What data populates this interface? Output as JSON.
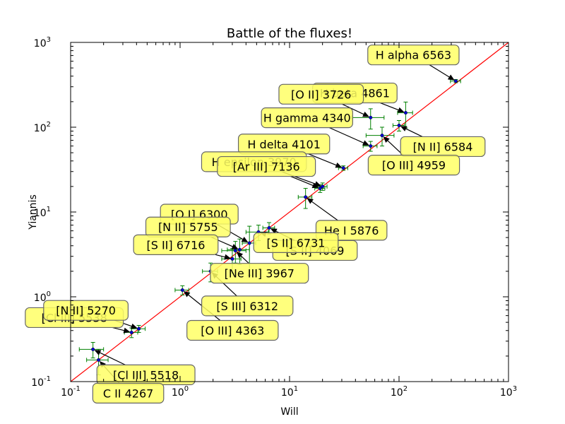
{
  "chart_data": {
    "type": "scatter",
    "title": "Battle of the fluxes!",
    "xlabel": "Will",
    "ylabel": "Yiannis",
    "xscale": "log",
    "yscale": "log",
    "xlim": [
      0.1,
      1000
    ],
    "ylim": [
      0.1,
      1000
    ],
    "x_ticks": [
      "10^-1",
      "10^0",
      "10^1",
      "10^2",
      "10^3"
    ],
    "y_ticks": [
      "10^-1",
      "10^0",
      "10^1",
      "10^2",
      "10^3"
    ],
    "grid": false,
    "reference_line": {
      "label": "",
      "from": [
        0.1,
        0.1
      ],
      "to": [
        1000,
        1000
      ],
      "color": "#ff0000"
    },
    "marker_color": "#0000cc",
    "errorbar_color": "#008000",
    "annotation_box_color": "#ffff66",
    "points": [
      {
        "label": "H alpha 6563",
        "x": 330,
        "y": 350,
        "xerr": 35,
        "yerr": 15
      },
      {
        "label": "H beta 4861",
        "x": 115,
        "y": 148,
        "xerr": 18,
        "yerr": 50
      },
      {
        "label": "[O II] 3726",
        "x": 55,
        "y": 130,
        "xerr": 18,
        "yerr": 35
      },
      {
        "label": "[N II] 6584",
        "x": 100,
        "y": 105,
        "xerr": 12,
        "yerr": 15
      },
      {
        "label": "[O III] 4959",
        "x": 70,
        "y": 80,
        "xerr": 20,
        "yerr": 20
      },
      {
        "label": "H gamma 4340",
        "x": 55,
        "y": 60,
        "xerr": 8,
        "yerr": 8
      },
      {
        "label": "H delta 4101",
        "x": 31,
        "y": 33,
        "xerr": 3,
        "yerr": 2
      },
      {
        "label": "H epsilon 3970",
        "x": 20,
        "y": 20,
        "xerr": 2,
        "yerr": 2
      },
      {
        "label": "[Ar III] 7136",
        "x": 19,
        "y": 19,
        "xerr": 2,
        "yerr": 2
      },
      {
        "label": "He I 5876",
        "x": 14,
        "y": 15,
        "xerr": 2,
        "yerr": 4
      },
      {
        "label": "[O I] 6300",
        "x": 4.3,
        "y": 4.3,
        "xerr": 0.6,
        "yerr": 2.5
      },
      {
        "label": "[N II] 5755",
        "x": 3.5,
        "y": 3.6,
        "xerr": 0.8,
        "yerr": 1.2
      },
      {
        "label": "[S II] 6716",
        "x": 3.0,
        "y": 2.8,
        "xerr": 0.6,
        "yerr": 0.9
      },
      {
        "label": "[S II] 4069",
        "x": 6.5,
        "y": 6.5,
        "xerr": 0.8,
        "yerr": 1.0
      },
      {
        "label": "[S II] 6731",
        "x": 5.2,
        "y": 5.8,
        "xerr": 1.2,
        "yerr": 1.2
      },
      {
        "label": "[Ne III] 3967",
        "x": 3.2,
        "y": 3.5,
        "xerr": 0.8,
        "yerr": 1.0
      },
      {
        "label": "[S III] 6312",
        "x": 1.9,
        "y": 2.0,
        "xerr": 0.3,
        "yerr": 0.5
      },
      {
        "label": "[O III] 4363",
        "x": 1.05,
        "y": 1.2,
        "xerr": 0.15,
        "yerr": 0.15
      },
      {
        "label": "[Cl III] 5538",
        "x": 0.36,
        "y": 0.38,
        "xerr": 0.05,
        "yerr": 0.05
      },
      {
        "label": "[N II] 5270",
        "x": 0.42,
        "y": 0.42,
        "xerr": 0.06,
        "yerr": 0.04
      },
      {
        "label": "[Cl III] 5518",
        "x": 0.16,
        "y": 0.24,
        "xerr": 0.04,
        "yerr": 0.05
      },
      {
        "label": "C II 4267",
        "x": 0.18,
        "y": 0.18,
        "xerr": 0.04,
        "yerr": 0.06
      }
    ]
  }
}
